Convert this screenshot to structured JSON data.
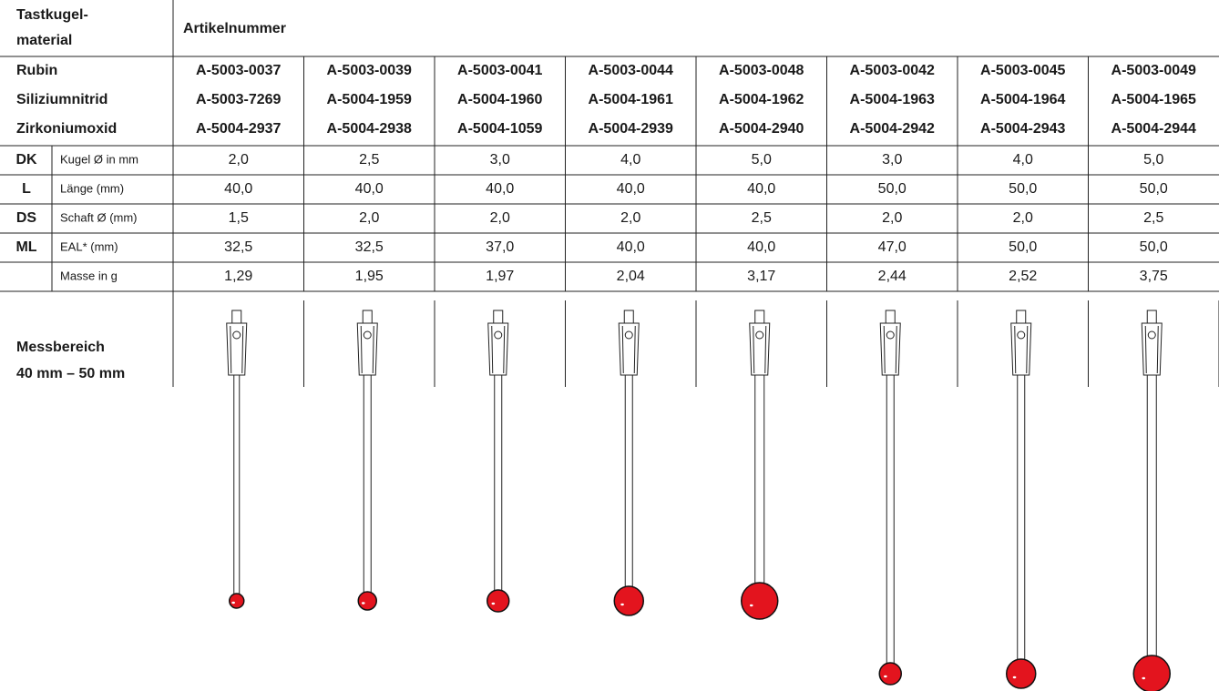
{
  "header": {
    "material_label": [
      "Tastkugel-",
      "material"
    ],
    "article_label": "Artikelnummer"
  },
  "materials": [
    {
      "name": "Rubin",
      "articles": [
        "A-5003-0037",
        "A-5003-0039",
        "A-5003-0041",
        "A-5003-0044",
        "A-5003-0048",
        "A-5003-0042",
        "A-5003-0045",
        "A-5003-0049"
      ]
    },
    {
      "name": "Siliziumnitrid",
      "articles": [
        "A-5003-7269",
        "A-5004-1959",
        "A-5004-1960",
        "A-5004-1961",
        "A-5004-1962",
        "A-5004-1963",
        "A-5004-1964",
        "A-5004-1965"
      ]
    },
    {
      "name": "Zirkoniumoxid",
      "articles": [
        "A-5004-2937",
        "A-5004-2938",
        "A-5004-1059",
        "A-5004-2939",
        "A-5004-2940",
        "A-5004-2942",
        "A-5004-2943",
        "A-5004-2944"
      ]
    }
  ],
  "specs": [
    {
      "code": "DK",
      "label": "Kugel Ø in mm",
      "values": [
        "2,0",
        "2,5",
        "3,0",
        "4,0",
        "5,0",
        "3,0",
        "4,0",
        "5,0"
      ]
    },
    {
      "code": "L",
      "label": "Länge (mm)",
      "values": [
        "40,0",
        "40,0",
        "40,0",
        "40,0",
        "40,0",
        "50,0",
        "50,0",
        "50,0"
      ]
    },
    {
      "code": "DS",
      "label": "Schaft Ø (mm)",
      "values": [
        "1,5",
        "2,0",
        "2,0",
        "2,0",
        "2,5",
        "2,0",
        "2,0",
        "2,5"
      ]
    },
    {
      "code": "ML",
      "label": "EAL* (mm)",
      "values": [
        "32,5",
        "32,5",
        "37,0",
        "40,0",
        "40,0",
        "47,0",
        "50,0",
        "50,0"
      ]
    },
    {
      "label": "Masse in g",
      "values": [
        "1,29",
        "1,95",
        "1,97",
        "2,04",
        "3,17",
        "2,44",
        "2,52",
        "3,75"
      ]
    }
  ],
  "footer": {
    "range_title": "Messbereich",
    "range_value": "40 mm – 50 mm"
  }
}
